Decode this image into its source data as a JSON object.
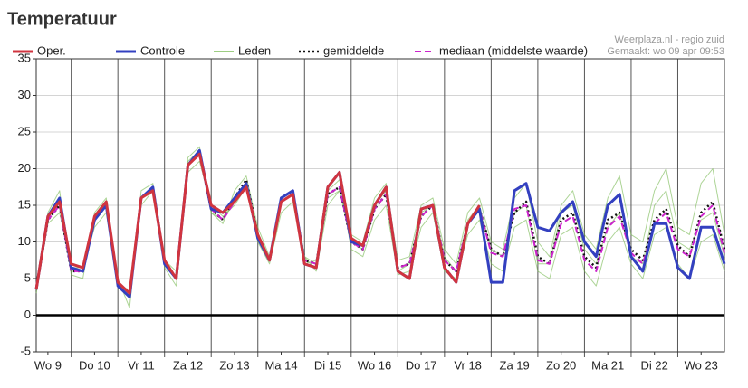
{
  "chart_data": {
    "type": "line",
    "title": "Temperatuur",
    "source": "Weerplaza.nl - regio zuid",
    "created": "Gemaakt: wo 09 apr 09:53",
    "x": [
      6,
      12,
      18,
      24,
      30,
      36,
      42,
      48,
      54,
      60,
      66,
      72,
      78,
      84,
      90,
      96,
      102,
      108,
      114,
      120,
      126,
      132,
      138,
      144,
      150,
      156,
      162,
      168,
      174,
      180,
      186,
      192,
      198,
      204,
      210,
      216,
      222,
      228,
      234,
      240,
      246,
      252,
      258,
      264,
      270,
      276,
      282,
      288,
      294,
      300,
      306,
      312,
      318,
      324,
      330,
      336,
      342,
      348,
      354,
      360
    ],
    "xlim": [
      6,
      360
    ],
    "xticks": [
      {
        "value": 12,
        "label": "Wo 9"
      },
      {
        "value": 36,
        "label": "Do 10"
      },
      {
        "value": 60,
        "label": "Vr 11"
      },
      {
        "value": 84,
        "label": "Za 12"
      },
      {
        "value": 108,
        "label": "Zo 13"
      },
      {
        "value": 132,
        "label": "Ma 14"
      },
      {
        "value": 156,
        "label": "Di 15"
      },
      {
        "value": 180,
        "label": "Wo 16"
      },
      {
        "value": 204,
        "label": "Do 17"
      },
      {
        "value": 228,
        "label": "Vr 18"
      },
      {
        "value": 252,
        "label": "Za 19"
      },
      {
        "value": 276,
        "label": "Zo 20"
      },
      {
        "value": 300,
        "label": "Ma 21"
      },
      {
        "value": 324,
        "label": "Di 22"
      },
      {
        "value": 348,
        "label": "Wo 23"
      }
    ],
    "xgrid": [
      24,
      48,
      72,
      96,
      120,
      144,
      168,
      192,
      216,
      240,
      264,
      288,
      312,
      336
    ],
    "ylim": [
      -5,
      35
    ],
    "yticks": [
      -5,
      0,
      5,
      10,
      15,
      20,
      25,
      30,
      35
    ],
    "grid": true,
    "zero_line": 0,
    "series": [
      {
        "name": "Oper.",
        "color": "#d0343f",
        "width": 3,
        "dash": "solid",
        "values": [
          3.5,
          13.5,
          15.5,
          7,
          6.5,
          13.5,
          15.5,
          4.5,
          3,
          16,
          17,
          7.5,
          5,
          20.5,
          22,
          15,
          14,
          15.5,
          17.5,
          11,
          7.5,
          15.5,
          16.5,
          7,
          6.5,
          17.5,
          19.5,
          10.5,
          9.5,
          15,
          17.5,
          6,
          5,
          14.5,
          15,
          6.5,
          4.5,
          12.5,
          15,
          null,
          null,
          null,
          null,
          null,
          null,
          null,
          null,
          null,
          null,
          null,
          null,
          null,
          null,
          null,
          null,
          null,
          null,
          null,
          null,
          null
        ]
      },
      {
        "name": "Controle",
        "color": "#3340c0",
        "width": 3,
        "dash": "solid",
        "values": [
          3.5,
          13.5,
          16,
          6.5,
          6,
          13,
          15,
          4,
          2.5,
          16,
          17.5,
          7,
          5,
          20.5,
          22.5,
          14.5,
          14,
          16,
          18,
          10.5,
          7.5,
          16,
          17,
          7,
          6.5,
          17.5,
          19.5,
          10,
          9.5,
          15,
          17.5,
          6,
          5,
          14.5,
          15,
          6.5,
          4.5,
          12.5,
          14.5,
          4.5,
          4.5,
          17,
          18,
          12,
          11.5,
          14,
          15.5,
          10,
          8,
          15,
          16.5,
          8,
          6,
          12.5,
          12.5,
          6.5,
          5,
          12,
          12,
          7
        ]
      },
      {
        "name": "Leden",
        "color": "#74b84e",
        "width": 1,
        "dash": "solid",
        "members": [
          [
            4,
            14,
            17,
            5.5,
            5,
            14,
            16,
            5,
            1,
            17,
            18,
            6.5,
            4,
            21.5,
            23,
            14,
            12.5,
            17,
            19,
            12,
            8,
            16,
            17,
            8,
            6,
            15,
            17,
            11,
            10,
            16,
            18,
            7.5,
            8,
            15,
            16,
            9,
            7,
            14,
            16,
            10,
            9,
            16,
            18,
            10,
            8,
            15,
            17,
            11,
            9,
            16,
            19,
            11,
            10,
            17,
            20,
            12,
            11,
            18,
            20,
            11
          ],
          [
            3,
            12.5,
            14,
            6.5,
            6.5,
            12,
            14,
            4,
            3.5,
            15,
            17,
            7.5,
            6,
            19.5,
            21,
            15,
            13.5,
            15,
            17.5,
            10,
            7,
            14,
            15.5,
            7,
            7.5,
            17,
            18.5,
            9,
            8,
            13,
            15,
            5.5,
            6,
            12,
            14,
            6,
            5,
            11,
            13,
            7,
            6,
            12,
            13,
            6,
            5,
            11,
            12,
            6,
            4,
            10,
            12,
            7,
            5,
            11,
            12,
            7,
            5,
            10,
            11,
            6
          ],
          [
            3.5,
            13.5,
            15.5,
            6,
            6,
            13.5,
            15.5,
            4.5,
            3,
            16,
            17.5,
            7,
            5,
            21,
            22.5,
            14,
            13,
            15.5,
            18,
            11,
            7.5,
            15.5,
            16.5,
            8,
            7,
            16,
            17,
            10,
            9,
            15,
            17,
            6,
            7,
            14,
            15,
            8,
            6,
            13,
            15,
            9,
            8,
            14,
            15,
            7,
            7,
            14,
            15,
            9,
            7,
            12,
            14,
            8,
            7,
            15,
            17,
            10,
            9,
            13,
            14,
            8
          ]
        ]
      },
      {
        "name": "gemiddelde",
        "color": "#111111",
        "width": 2.5,
        "dash": "dotted",
        "values": [
          3.5,
          13,
          15,
          6,
          6,
          13,
          15,
          4.5,
          3,
          16,
          17.5,
          7,
          5,
          20.5,
          22,
          14.5,
          13,
          16,
          18.5,
          11,
          7.5,
          15.5,
          16.5,
          7.5,
          7,
          16.5,
          17.5,
          10,
          9,
          14.5,
          16.5,
          6.5,
          7,
          13.5,
          15,
          7.5,
          6,
          12.5,
          14.5,
          9,
          8,
          14,
          15.5,
          8,
          7,
          13,
          14,
          8,
          6.5,
          13,
          14,
          9,
          7.5,
          13,
          14.5,
          9.5,
          8,
          14,
          15.5,
          9
        ]
      },
      {
        "name": "mediaan (middelste waarde)",
        "color": "#cc22cc",
        "width": 2,
        "dash": "dashed",
        "values": [
          3.5,
          13,
          15,
          6,
          6,
          13,
          15,
          4.5,
          3,
          16,
          17.5,
          7,
          5,
          20.5,
          22,
          14.5,
          13,
          15.5,
          18,
          11,
          7.5,
          15.5,
          16.5,
          7.5,
          7,
          16.5,
          17.5,
          10,
          9,
          14.5,
          16.5,
          6.5,
          7,
          13.5,
          15,
          7.5,
          6,
          12.5,
          14.5,
          8.5,
          8,
          14.5,
          15,
          7.5,
          7,
          12.5,
          13.5,
          7.5,
          6,
          12,
          13.5,
          8.5,
          7,
          12.5,
          14,
          9,
          8,
          13.5,
          15,
          8.5
        ]
      }
    ],
    "draw_order": [
      2,
      3,
      4,
      1,
      0
    ]
  }
}
